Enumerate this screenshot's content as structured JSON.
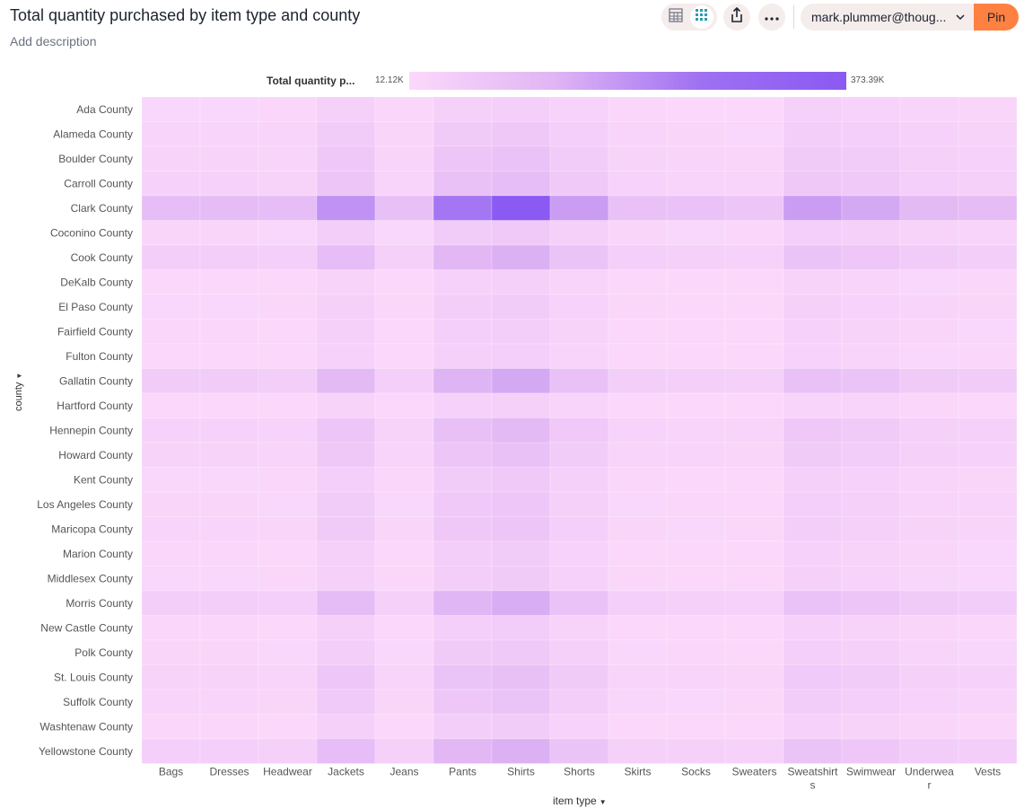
{
  "header": {
    "title": "Total quantity purchased by item type and county",
    "description": "Add description",
    "user": "mark.plummer@thoug...",
    "pin_label": "Pin"
  },
  "icons": {
    "table_view": "table-icon",
    "chart_view": "heatmap-icon",
    "share": "share-icon",
    "more": "more-icon",
    "chevron": "chevron-down-icon"
  },
  "colors": {
    "pin": "#ff8142",
    "scale_low": "#fbd8fb",
    "scale_high": "#8a5af2"
  },
  "chart_data": {
    "type": "heatmap",
    "xlabel": "item type",
    "ylabel": "county",
    "legend": {
      "title": "Total quantity p...",
      "min_label": "12.12K",
      "max_label": "373.39K",
      "min": 12120,
      "max": 373390,
      "placement": "top"
    },
    "x_categories": [
      "Bags",
      "Dresses",
      "Headwear",
      "Jackets",
      "Jeans",
      "Pants",
      "Shirts",
      "Shorts",
      "Skirts",
      "Socks",
      "Sweaters",
      "Sweatshirts",
      "Swimwear",
      "Underwear",
      "Vests"
    ],
    "x_tick_lines": [
      [
        "Bags"
      ],
      [
        "Dresses"
      ],
      [
        "Headwear"
      ],
      [
        "Jackets"
      ],
      [
        "Jeans"
      ],
      [
        "Pants"
      ],
      [
        "Shirts"
      ],
      [
        "Shorts"
      ],
      [
        "Skirts"
      ],
      [
        "Socks"
      ],
      [
        "Sweaters"
      ],
      [
        "Sweatshirt",
        "s"
      ],
      [
        "Swimwear"
      ],
      [
        "Underwea",
        "r"
      ],
      [
        "Vests"
      ]
    ],
    "y_categories": [
      "Ada County",
      "Alameda County",
      "Boulder County",
      "Carroll County",
      "Clark County",
      "Coconino County",
      "Cook County",
      "DeKalb County",
      "El Paso County",
      "Fairfield County",
      "Fulton County",
      "Gallatin County",
      "Hartford County",
      "Hennepin County",
      "Howard County",
      "Kent County",
      "Los Angeles County",
      "Maricopa County",
      "Marion County",
      "Middlesex County",
      "Morris County",
      "New Castle County",
      "Polk County",
      "St. Louis County",
      "Suffolk County",
      "Washtenaw County",
      "Yellowstone County"
    ],
    "values": [
      [
        20000,
        20000,
        18000,
        40000,
        18000,
        40000,
        45000,
        32000,
        18000,
        17000,
        15000,
        40000,
        32000,
        25000,
        22000
      ],
      [
        28000,
        28000,
        25000,
        55000,
        22000,
        60000,
        70000,
        45000,
        25000,
        22000,
        20000,
        50000,
        45000,
        35000,
        30000
      ],
      [
        30000,
        30000,
        28000,
        70000,
        25000,
        80000,
        90000,
        55000,
        30000,
        25000,
        22000,
        60000,
        55000,
        40000,
        35000
      ],
      [
        35000,
        35000,
        30000,
        80000,
        28000,
        95000,
        110000,
        65000,
        32000,
        28000,
        25000,
        70000,
        65000,
        45000,
        40000
      ],
      [
        110000,
        115000,
        110000,
        230000,
        100000,
        300000,
        373390,
        200000,
        95000,
        90000,
        80000,
        200000,
        170000,
        120000,
        115000
      ],
      [
        22000,
        22000,
        20000,
        50000,
        20000,
        55000,
        65000,
        40000,
        22000,
        20000,
        18000,
        45000,
        40000,
        30000,
        25000
      ],
      [
        50000,
        50000,
        45000,
        110000,
        40000,
        130000,
        150000,
        85000,
        45000,
        40000,
        35000,
        85000,
        75000,
        55000,
        50000
      ],
      [
        15000,
        15000,
        14000,
        30000,
        14000,
        35000,
        40000,
        25000,
        14000,
        13000,
        12120,
        30000,
        25000,
        20000,
        18000
      ],
      [
        20000,
        20000,
        18000,
        40000,
        18000,
        50000,
        55000,
        32000,
        18000,
        16000,
        15000,
        38000,
        32000,
        25000,
        22000
      ],
      [
        18000,
        18000,
        16000,
        38000,
        16000,
        45000,
        50000,
        30000,
        16000,
        15000,
        14000,
        35000,
        30000,
        22000,
        20000
      ],
      [
        16000,
        16000,
        15000,
        35000,
        15000,
        40000,
        45000,
        28000,
        15000,
        14000,
        13000,
        32000,
        28000,
        20000,
        18000
      ],
      [
        55000,
        55000,
        50000,
        120000,
        45000,
        140000,
        170000,
        95000,
        50000,
        45000,
        40000,
        95000,
        85000,
        60000,
        55000
      ],
      [
        15000,
        15000,
        14000,
        30000,
        14000,
        35000,
        40000,
        25000,
        14000,
        13000,
        12500,
        28000,
        25000,
        18000,
        16000
      ],
      [
        35000,
        35000,
        32000,
        80000,
        30000,
        100000,
        120000,
        65000,
        32000,
        28000,
        25000,
        70000,
        60000,
        42000,
        38000
      ],
      [
        30000,
        30000,
        28000,
        70000,
        25000,
        80000,
        95000,
        55000,
        28000,
        25000,
        22000,
        60000,
        52000,
        38000,
        34000
      ],
      [
        20000,
        20000,
        18000,
        45000,
        18000,
        55000,
        65000,
        38000,
        18000,
        16000,
        15000,
        42000,
        36000,
        26000,
        22000
      ],
      [
        22000,
        22000,
        20000,
        55000,
        20000,
        65000,
        75000,
        42000,
        20000,
        18000,
        16000,
        45000,
        40000,
        28000,
        25000
      ],
      [
        25000,
        25000,
        22000,
        60000,
        22000,
        70000,
        80000,
        45000,
        22000,
        20000,
        18000,
        50000,
        42000,
        30000,
        28000
      ],
      [
        18000,
        18000,
        16000,
        40000,
        16000,
        48000,
        55000,
        32000,
        16000,
        15000,
        14000,
        35000,
        30000,
        22000,
        20000
      ],
      [
        20000,
        20000,
        18000,
        42000,
        18000,
        50000,
        58000,
        34000,
        18000,
        16000,
        15000,
        38000,
        32000,
        24000,
        21000
      ],
      [
        50000,
        50000,
        45000,
        115000,
        42000,
        135000,
        160000,
        90000,
        45000,
        40000,
        36000,
        90000,
        80000,
        58000,
        52000
      ],
      [
        18000,
        18000,
        16000,
        38000,
        16000,
        45000,
        52000,
        30000,
        16000,
        15000,
        14000,
        34000,
        30000,
        22000,
        19000
      ],
      [
        22000,
        22000,
        20000,
        50000,
        20000,
        58000,
        68000,
        40000,
        20000,
        18000,
        16000,
        44000,
        38000,
        27000,
        24000
      ],
      [
        30000,
        30000,
        28000,
        72000,
        26000,
        85000,
        100000,
        58000,
        28000,
        25000,
        22000,
        62000,
        55000,
        38000,
        34000
      ],
      [
        25000,
        25000,
        22000,
        62000,
        22000,
        72000,
        85000,
        48000,
        24000,
        21000,
        19000,
        52000,
        46000,
        32000,
        28000
      ],
      [
        18000,
        18000,
        16000,
        40000,
        16000,
        48000,
        55000,
        32000,
        16000,
        15000,
        14000,
        35000,
        30000,
        22000,
        19000
      ],
      [
        45000,
        45000,
        42000,
        110000,
        40000,
        130000,
        150000,
        85000,
        42000,
        38000,
        34000,
        85000,
        75000,
        52000,
        48000
      ]
    ]
  }
}
